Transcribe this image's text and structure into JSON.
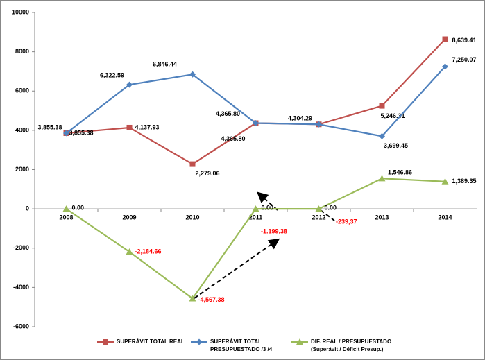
{
  "chart_data": {
    "type": "line",
    "categories": [
      "2008",
      "2009",
      "2010",
      "2011",
      "2012",
      "2013",
      "2014"
    ],
    "series": [
      {
        "name": "SUPERÁVIT TOTAL REAL",
        "color": "#c0504d",
        "marker": "square",
        "values": [
          3855.38,
          4137.93,
          2279.06,
          4365.8,
          4304.29,
          5246.31,
          8639.41
        ],
        "value_labels": [
          "3,855.38",
          "4,137.93",
          "2,279.06",
          "4,365.80",
          null,
          "5,246.31",
          "8,639.41"
        ]
      },
      {
        "name": "SUPERÁVIT TOTAL\nPRESUPUESTADO /3 /4",
        "color": "#4f81bd",
        "marker": "diamond",
        "values": [
          3855.38,
          6322.59,
          6846.44,
          4365.8,
          4304.29,
          3699.45,
          7250.07
        ],
        "value_labels": [
          "3,855.38",
          "6,322.59",
          "6,846.44",
          "4,365.80",
          "4,304.29",
          "3,699.45",
          "7,250.07"
        ]
      },
      {
        "name": "DIF. REAL / PRESUPUESTADO\n(Superávit / Déficit Presup.)",
        "color": "#9bbb59",
        "marker": "triangle",
        "values": [
          0,
          -2184.66,
          -4567.38,
          0,
          0,
          1546.86,
          1389.35
        ],
        "value_labels": [
          "0.00",
          "-2,184.66",
          "-4,567.38",
          "0.00",
          "0.00",
          "1,546.86",
          "1,389.35"
        ]
      }
    ],
    "annotations": [
      "-1.199,38",
      "-239,37"
    ],
    "ylim": [
      -6000,
      10000
    ],
    "yticks": [
      -6000,
      -4000,
      -2000,
      0,
      2000,
      4000,
      6000,
      8000,
      10000
    ],
    "grid": false,
    "legend": "bottom"
  }
}
